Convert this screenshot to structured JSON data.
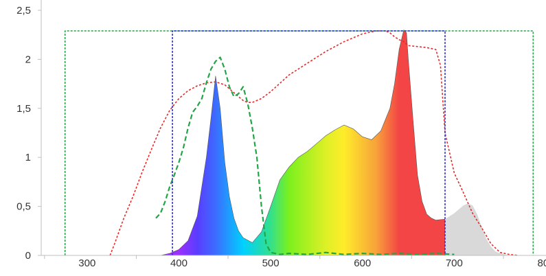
{
  "chart_data": {
    "type": "area",
    "title": "",
    "xlabel": "",
    "ylabel": "",
    "xlim": [
      250,
      800
    ],
    "ylim": [
      0,
      2.5
    ],
    "grid": false,
    "legend": "none",
    "x_ticks": [
      {
        "value": 300,
        "label": "300"
      },
      {
        "value": 400,
        "label": "400"
      },
      {
        "value": 500,
        "label": "500"
      },
      {
        "value": 600,
        "label": "600"
      },
      {
        "value": 700,
        "label": "700"
      },
      {
        "value": 800,
        "label": "800"
      }
    ],
    "y_ticks": [
      {
        "value": 0,
        "label": "0"
      },
      {
        "value": 0.5,
        "label": "0,5"
      },
      {
        "value": 1,
        "label": "1"
      },
      {
        "value": 1.5,
        "label": "1,5"
      },
      {
        "value": 2,
        "label": "2"
      },
      {
        "value": 2.5,
        "label": "2,5"
      }
    ],
    "series": [
      {
        "kind": "spectrum-area",
        "x": [
          380,
          390,
          400,
          410,
          420,
          430,
          435,
          440,
          445,
          450,
          455,
          460,
          465,
          470,
          480,
          490,
          500,
          510,
          520,
          530,
          540,
          550,
          560,
          570,
          580,
          590,
          600,
          610,
          620,
          630,
          635,
          640,
          645,
          648,
          650,
          655,
          660,
          665,
          670,
          675,
          680,
          690
        ],
        "y": [
          0,
          0.02,
          0.06,
          0.15,
          0.4,
          1.0,
          1.4,
          1.83,
          1.5,
          0.95,
          0.6,
          0.38,
          0.25,
          0.18,
          0.13,
          0.24,
          0.5,
          0.77,
          0.9,
          1.0,
          1.06,
          1.14,
          1.22,
          1.28,
          1.33,
          1.29,
          1.21,
          1.18,
          1.27,
          1.5,
          1.75,
          2.1,
          2.3,
          2.27,
          2.0,
          1.4,
          0.82,
          0.55,
          0.42,
          0.38,
          0.36,
          0.37
        ]
      },
      {
        "kind": "grey-area",
        "color": "#d9d9d9",
        "x": [
          690,
          695,
          700,
          705,
          710,
          715,
          720,
          725,
          730,
          735,
          740,
          745,
          750,
          755,
          760
        ],
        "y": [
          0.37,
          0.4,
          0.43,
          0.47,
          0.51,
          0.53,
          0.51,
          0.42,
          0.29,
          0.17,
          0.09,
          0.04,
          0.02,
          0.01,
          0
        ]
      },
      {
        "kind": "dotted-line",
        "color": "#e32b2b",
        "x": [
          325,
          330,
          340,
          350,
          360,
          370,
          380,
          390,
          400,
          410,
          420,
          430,
          440,
          450,
          460,
          470,
          475,
          480,
          490,
          500,
          520,
          540,
          560,
          580,
          600,
          615,
          625,
          630,
          635,
          640,
          645,
          650,
          660,
          670,
          680,
          685,
          690,
          700,
          710,
          720,
          730,
          740,
          750,
          760,
          770
        ],
        "y": [
          0,
          0.12,
          0.38,
          0.6,
          0.85,
          1.08,
          1.3,
          1.48,
          1.6,
          1.68,
          1.73,
          1.76,
          1.77,
          1.74,
          1.66,
          1.58,
          1.56,
          1.56,
          1.6,
          1.67,
          1.84,
          1.96,
          2.08,
          2.18,
          2.26,
          2.29,
          2.29,
          2.27,
          2.23,
          2.2,
          2.18,
          2.14,
          2.13,
          2.12,
          2.1,
          1.94,
          1.25,
          0.84,
          0.64,
          0.43,
          0.28,
          0.12,
          0.03,
          0.01,
          0
        ]
      },
      {
        "kind": "dashed-line",
        "color": "#22a447",
        "x": [
          375,
          380,
          385,
          390,
          395,
          400,
          405,
          410,
          415,
          420,
          425,
          430,
          435,
          440,
          445,
          450,
          455,
          460,
          465,
          470,
          475,
          480,
          485,
          490,
          495,
          500,
          510,
          520,
          540,
          560,
          580,
          600,
          620,
          640,
          660,
          680,
          700
        ],
        "y": [
          0.38,
          0.43,
          0.55,
          0.7,
          0.82,
          0.95,
          1.1,
          1.3,
          1.46,
          1.52,
          1.6,
          1.76,
          1.9,
          1.98,
          2.02,
          1.9,
          1.72,
          1.62,
          1.65,
          1.72,
          1.55,
          1.3,
          1.0,
          0.5,
          0.12,
          0.03,
          0.01,
          0.02,
          0.01,
          0.03,
          0.01,
          0.02,
          0.01,
          0.02,
          0.01,
          0.02,
          0.01
        ]
      },
      {
        "kind": "dotted-box",
        "color": "#22a447",
        "x": [
          276,
          276,
          786,
          786
        ],
        "y": [
          0,
          2.29,
          2.29,
          0
        ]
      },
      {
        "kind": "dotted-box",
        "color": "#2f2fd4",
        "x": [
          393,
          393,
          690,
          690
        ],
        "y": [
          0,
          2.29,
          2.29,
          0
        ]
      }
    ]
  }
}
